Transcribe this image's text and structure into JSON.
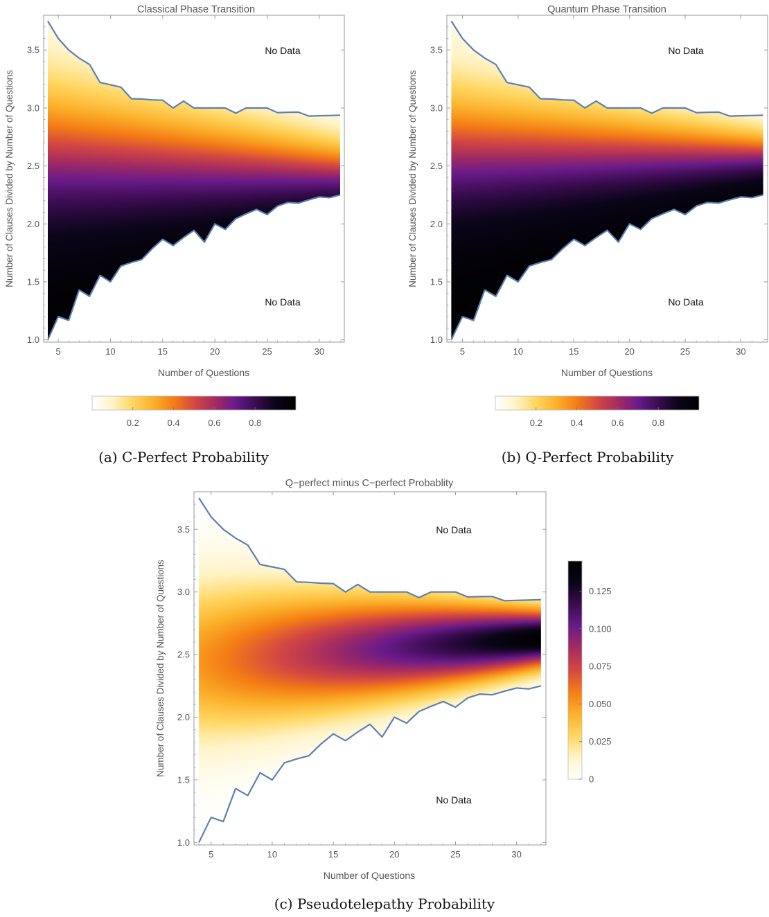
{
  "figure": {
    "captions": [
      "(a) C-Perfect Probability",
      "(b) Q-Perfect Probability",
      "(c) Pseudotelepathy Probability"
    ]
  },
  "colors": {
    "boundary": "#5b80b5",
    "frame": "#9a9a9a",
    "tick_text": "#555555",
    "inferno_stops": [
      "#ffffff",
      "#fff4c8",
      "#ffd660",
      "#fbb02a",
      "#f57d15",
      "#d44842",
      "#a52c60",
      "#6a1b8a",
      "#3a0c50",
      "#0a0518",
      "#000000"
    ]
  },
  "chart_data": [
    {
      "type": "heatmap",
      "title": "Classical Phase Transition",
      "xlabel": "Number of Questions",
      "ylabel": "Number of Clauses Divided by Number of Questions",
      "xlim": [
        3.6,
        32.4
      ],
      "ylim": [
        0.98,
        3.8
      ],
      "x_ticks": [
        5,
        10,
        15,
        20,
        25,
        30
      ],
      "y_ticks": [
        1.0,
        1.5,
        2.0,
        2.5,
        3.0,
        3.5
      ],
      "annotations": [
        "No Data",
        "No Data"
      ],
      "colorbar": {
        "orientation": "horizontal",
        "range": [
          0,
          1
        ],
        "ticks": [
          0.2,
          0.4,
          0.6,
          0.8
        ],
        "tick_labels": [
          "0.2",
          "0.4",
          "0.6",
          "0.8"
        ]
      },
      "field": "p_perfect_classical",
      "upper_boundary": {
        "x": [
          4,
          5,
          6,
          7,
          8,
          9,
          10,
          11,
          12,
          13,
          14,
          15,
          16,
          17,
          18,
          19,
          20,
          21,
          22,
          23,
          24,
          25,
          26,
          27,
          28,
          29,
          30,
          31,
          32
        ],
        "y": [
          3.75,
          3.6,
          3.5,
          3.43,
          3.375,
          3.22,
          3.2,
          3.18,
          3.08,
          3.077,
          3.07,
          3.067,
          3.0,
          3.06,
          3.0,
          3.0,
          3.0,
          3.0,
          2.955,
          3.0,
          3.0,
          3.0,
          2.96,
          2.963,
          2.964,
          2.93,
          2.933,
          2.935,
          2.938
        ]
      },
      "lower_boundary": {
        "x": [
          4,
          5,
          6,
          7,
          8,
          9,
          10,
          11,
          12,
          13,
          14,
          15,
          16,
          17,
          18,
          19,
          20,
          21,
          22,
          23,
          24,
          25,
          26,
          27,
          28,
          29,
          30,
          31,
          32
        ],
        "y": [
          1.0,
          1.2,
          1.167,
          1.43,
          1.375,
          1.556,
          1.5,
          1.636,
          1.667,
          1.692,
          1.786,
          1.867,
          1.813,
          1.882,
          1.944,
          1.842,
          2.0,
          1.952,
          2.045,
          2.087,
          2.125,
          2.08,
          2.154,
          2.185,
          2.179,
          2.207,
          2.233,
          2.226,
          2.25
        ]
      }
    },
    {
      "type": "heatmap",
      "title": "Quantum Phase Transition",
      "xlabel": "Number of Questions",
      "ylabel": "Number of Clauses Divided by Number of Questions",
      "xlim": [
        3.6,
        32.4
      ],
      "ylim": [
        0.98,
        3.8
      ],
      "x_ticks": [
        5,
        10,
        15,
        20,
        25,
        30
      ],
      "y_ticks": [
        1.0,
        1.5,
        2.0,
        2.5,
        3.0,
        3.5
      ],
      "annotations": [
        "No Data",
        "No Data"
      ],
      "colorbar": {
        "orientation": "horizontal",
        "range": [
          0,
          1
        ],
        "ticks": [
          0.2,
          0.4,
          0.6,
          0.8
        ],
        "tick_labels": [
          "0.2",
          "0.4",
          "0.6",
          "0.8"
        ]
      },
      "field": "p_perfect_quantum",
      "upper_boundary": {
        "x": [
          4,
          5,
          6,
          7,
          8,
          9,
          10,
          11,
          12,
          13,
          14,
          15,
          16,
          17,
          18,
          19,
          20,
          21,
          22,
          23,
          24,
          25,
          26,
          27,
          28,
          29,
          30,
          31,
          32
        ],
        "y": [
          3.75,
          3.6,
          3.5,
          3.43,
          3.375,
          3.22,
          3.2,
          3.18,
          3.08,
          3.077,
          3.07,
          3.067,
          3.0,
          3.06,
          3.0,
          3.0,
          3.0,
          3.0,
          2.955,
          3.0,
          3.0,
          3.0,
          2.96,
          2.963,
          2.964,
          2.93,
          2.933,
          2.935,
          2.938
        ]
      },
      "lower_boundary": {
        "x": [
          4,
          5,
          6,
          7,
          8,
          9,
          10,
          11,
          12,
          13,
          14,
          15,
          16,
          17,
          18,
          19,
          20,
          21,
          22,
          23,
          24,
          25,
          26,
          27,
          28,
          29,
          30,
          31,
          32
        ],
        "y": [
          1.0,
          1.2,
          1.167,
          1.43,
          1.375,
          1.556,
          1.5,
          1.636,
          1.667,
          1.692,
          1.786,
          1.867,
          1.813,
          1.882,
          1.944,
          1.842,
          2.0,
          1.952,
          2.045,
          2.087,
          2.125,
          2.08,
          2.154,
          2.185,
          2.179,
          2.207,
          2.233,
          2.226,
          2.25
        ]
      }
    },
    {
      "type": "heatmap",
      "title": "Q−perfect minus C−perfect Probablity",
      "xlabel": "Number of Questions",
      "ylabel": "Number of Clauses Divided by Number of Questions",
      "xlim": [
        3.6,
        32.4
      ],
      "ylim": [
        0.98,
        3.8
      ],
      "x_ticks": [
        5,
        10,
        15,
        20,
        25,
        30
      ],
      "y_ticks": [
        1.0,
        1.5,
        2.0,
        2.5,
        3.0,
        3.5
      ],
      "annotations": [
        "No Data",
        "No Data"
      ],
      "colorbar": {
        "orientation": "vertical",
        "range": [
          0,
          0.145
        ],
        "ticks": [
          0,
          0.025,
          0.05,
          0.075,
          0.1,
          0.125
        ],
        "tick_labels": [
          "0",
          "0.025",
          "0.050",
          "0.075",
          "0.100",
          "0.125"
        ]
      },
      "field": "difference",
      "upper_boundary": {
        "x": [
          4,
          5,
          6,
          7,
          8,
          9,
          10,
          11,
          12,
          13,
          14,
          15,
          16,
          17,
          18,
          19,
          20,
          21,
          22,
          23,
          24,
          25,
          26,
          27,
          28,
          29,
          30,
          31,
          32
        ],
        "y": [
          3.75,
          3.6,
          3.5,
          3.43,
          3.375,
          3.22,
          3.2,
          3.18,
          3.08,
          3.077,
          3.07,
          3.067,
          3.0,
          3.06,
          3.0,
          3.0,
          3.0,
          3.0,
          2.955,
          3.0,
          3.0,
          3.0,
          2.96,
          2.963,
          2.964,
          2.93,
          2.933,
          2.935,
          2.938
        ]
      },
      "lower_boundary": {
        "x": [
          4,
          5,
          6,
          7,
          8,
          9,
          10,
          11,
          12,
          13,
          14,
          15,
          16,
          17,
          18,
          19,
          20,
          21,
          22,
          23,
          24,
          25,
          26,
          27,
          28,
          29,
          30,
          31,
          32
        ],
        "y": [
          1.0,
          1.2,
          1.167,
          1.43,
          1.375,
          1.556,
          1.5,
          1.636,
          1.667,
          1.692,
          1.786,
          1.867,
          1.813,
          1.882,
          1.944,
          1.842,
          2.0,
          1.952,
          2.045,
          2.087,
          2.125,
          2.08,
          2.154,
          2.185,
          2.179,
          2.207,
          2.233,
          2.226,
          2.25
        ]
      }
    }
  ]
}
